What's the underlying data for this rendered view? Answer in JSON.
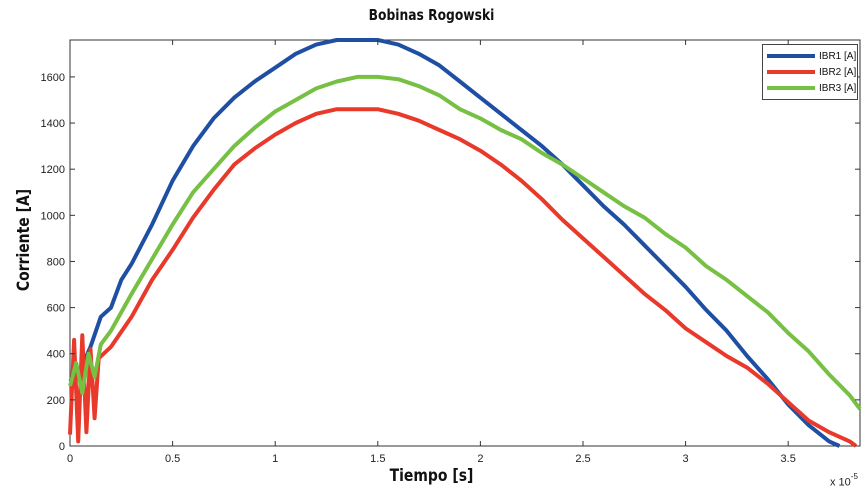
{
  "chart_data": {
    "type": "line",
    "title": "Bobinas Rogowski",
    "xlabel": "Tiempo [s]",
    "ylabel": "Corriente [A]",
    "x_exponent_base": "x 10",
    "x_exponent_power": "-5",
    "xlim": [
      0,
      3.85
    ],
    "ylim": [
      0,
      1760
    ],
    "xticks": [
      0,
      0.5,
      1,
      1.5,
      2,
      2.5,
      3,
      3.5
    ],
    "xtick_labels": [
      "0",
      "0.5",
      "1",
      "1.5",
      "2",
      "2.5",
      "3",
      "3.5"
    ],
    "yticks": [
      0,
      200,
      400,
      600,
      800,
      1000,
      1200,
      1400,
      1600
    ],
    "ytick_labels": [
      "0",
      "200",
      "400",
      "600",
      "800",
      "1000",
      "1200",
      "1400",
      "1600"
    ],
    "grid": false,
    "legend_position": "top-right",
    "series": [
      {
        "name": "IBR1 [A]",
        "color": "#1f4fa3",
        "x": [
          0.0,
          0.05,
          0.1,
          0.15,
          0.2,
          0.25,
          0.3,
          0.4,
          0.5,
          0.6,
          0.7,
          0.8,
          0.9,
          1.0,
          1.1,
          1.2,
          1.3,
          1.4,
          1.5,
          1.6,
          1.7,
          1.8,
          1.9,
          2.0,
          2.1,
          2.2,
          2.3,
          2.4,
          2.5,
          2.6,
          2.7,
          2.8,
          2.9,
          3.0,
          3.1,
          3.2,
          3.3,
          3.4,
          3.5,
          3.6,
          3.7,
          3.75
        ],
        "y": [
          280,
          330,
          430,
          560,
          600,
          720,
          790,
          960,
          1150,
          1300,
          1420,
          1510,
          1580,
          1640,
          1700,
          1740,
          1760,
          1760,
          1760,
          1740,
          1700,
          1650,
          1580,
          1510,
          1440,
          1370,
          1300,
          1220,
          1130,
          1040,
          960,
          870,
          780,
          690,
          590,
          500,
          390,
          290,
          180,
          90,
          20,
          0
        ]
      },
      {
        "name": "IBR2 [A]",
        "color": "#e8392b",
        "x": [
          0.0,
          0.02,
          0.04,
          0.06,
          0.08,
          0.1,
          0.12,
          0.14,
          0.2,
          0.3,
          0.4,
          0.5,
          0.6,
          0.7,
          0.8,
          0.9,
          1.0,
          1.1,
          1.2,
          1.3,
          1.4,
          1.5,
          1.6,
          1.7,
          1.8,
          1.9,
          2.0,
          2.1,
          2.2,
          2.3,
          2.4,
          2.5,
          2.6,
          2.7,
          2.8,
          2.9,
          3.0,
          3.1,
          3.2,
          3.3,
          3.4,
          3.5,
          3.6,
          3.7,
          3.8,
          3.83
        ],
        "y": [
          50,
          460,
          20,
          480,
          60,
          420,
          120,
          380,
          430,
          560,
          720,
          850,
          990,
          1110,
          1220,
          1290,
          1350,
          1400,
          1440,
          1460,
          1460,
          1460,
          1440,
          1410,
          1370,
          1330,
          1280,
          1220,
          1150,
          1070,
          980,
          900,
          820,
          740,
          660,
          590,
          510,
          450,
          390,
          340,
          270,
          190,
          110,
          60,
          20,
          0
        ]
      },
      {
        "name": "IBR3 [A]",
        "color": "#76c043",
        "x": [
          0.0,
          0.03,
          0.06,
          0.09,
          0.12,
          0.15,
          0.2,
          0.3,
          0.4,
          0.5,
          0.6,
          0.7,
          0.8,
          0.9,
          1.0,
          1.1,
          1.2,
          1.3,
          1.4,
          1.5,
          1.6,
          1.7,
          1.8,
          1.9,
          2.0,
          2.1,
          2.2,
          2.3,
          2.4,
          2.5,
          2.6,
          2.7,
          2.8,
          2.9,
          3.0,
          3.1,
          3.2,
          3.3,
          3.4,
          3.5,
          3.6,
          3.7,
          3.8,
          3.85
        ],
        "y": [
          260,
          360,
          230,
          400,
          300,
          440,
          500,
          660,
          810,
          960,
          1100,
          1200,
          1300,
          1380,
          1450,
          1500,
          1550,
          1580,
          1600,
          1600,
          1590,
          1560,
          1520,
          1460,
          1420,
          1370,
          1330,
          1270,
          1220,
          1160,
          1100,
          1040,
          990,
          920,
          860,
          780,
          720,
          650,
          580,
          490,
          410,
          310,
          220,
          160
        ]
      }
    ]
  }
}
